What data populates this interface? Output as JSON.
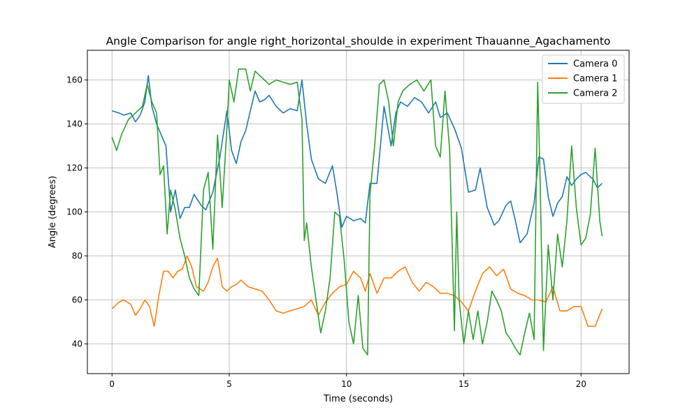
{
  "chart_data": {
    "type": "line",
    "title": "Angle Comparison for angle right_horizontal_shoulde in experiment Thauanne_Agachamento",
    "xlabel": "Time (seconds)",
    "ylabel": "Angle (degrees)",
    "xlim": [
      -1.05,
      22.05
    ],
    "ylim": [
      26.5,
      173.5
    ],
    "xticks": [
      0,
      5,
      10,
      15,
      20
    ],
    "yticks": [
      40,
      60,
      80,
      100,
      120,
      140,
      160
    ],
    "grid": true,
    "legend": "top-right",
    "colors": {
      "Camera 0": "#1f77b4",
      "Camera 1": "#ff7f0e",
      "Camera 2": "#2ca02c"
    },
    "series": [
      {
        "name": "Camera 0",
        "x": [
          0,
          0.3,
          0.5,
          0.8,
          1.0,
          1.2,
          1.4,
          1.55,
          1.7,
          1.9,
          2.1,
          2.3,
          2.5,
          2.7,
          2.9,
          3.1,
          3.3,
          3.5,
          3.8,
          4.0,
          4.3,
          4.6,
          4.9,
          5.1,
          5.3,
          5.5,
          5.7,
          5.9,
          6.1,
          6.3,
          6.5,
          6.7,
          7.0,
          7.3,
          7.6,
          7.9,
          8.1,
          8.3,
          8.5,
          8.8,
          9.1,
          9.4,
          9.6,
          9.8,
          10.0,
          10.3,
          10.6,
          10.8,
          11.0,
          11.3,
          11.6,
          11.9,
          12.1,
          12.3,
          12.6,
          12.9,
          13.2,
          13.5,
          13.8,
          14.0,
          14.3,
          14.6,
          14.9,
          15.2,
          15.5,
          15.7,
          16.0,
          16.3,
          16.5,
          16.8,
          17.0,
          17.2,
          17.4,
          17.7,
          18.0,
          18.2,
          18.4,
          18.6,
          18.8,
          19.0,
          19.2,
          19.4,
          19.6,
          19.8,
          20.0,
          20.2,
          20.5,
          20.7,
          20.9
        ],
        "y": [
          146,
          145,
          144,
          145,
          141,
          144,
          150,
          162,
          148,
          140,
          135,
          130,
          100,
          110,
          97,
          102,
          102,
          108,
          103,
          101,
          109,
          125,
          146,
          128,
          122,
          132,
          137,
          146,
          155,
          150,
          151,
          153,
          148,
          145,
          147,
          146,
          160,
          140,
          124,
          115,
          113,
          121,
          108,
          93,
          98,
          96,
          97,
          95,
          113,
          113,
          148,
          130,
          145,
          150,
          148,
          152,
          150,
          145,
          150,
          143,
          145,
          138,
          129,
          109,
          110,
          120,
          102,
          94,
          96,
          103,
          105,
          96,
          86,
          90,
          104,
          125,
          124,
          107,
          98,
          104,
          107,
          116,
          112,
          115,
          117,
          118,
          115,
          111,
          113
        ]
      },
      {
        "name": "Camera 1",
        "x": [
          0,
          0.3,
          0.5,
          0.8,
          1.0,
          1.2,
          1.4,
          1.6,
          1.8,
          2.0,
          2.2,
          2.4,
          2.6,
          2.8,
          3.0,
          3.2,
          3.4,
          3.6,
          3.9,
          4.1,
          4.3,
          4.5,
          4.7,
          4.9,
          5.1,
          5.3,
          5.5,
          5.8,
          6.1,
          6.4,
          6.7,
          7.0,
          7.3,
          7.6,
          7.9,
          8.2,
          8.5,
          8.8,
          9.1,
          9.4,
          9.7,
          10.0,
          10.3,
          10.6,
          10.8,
          11.0,
          11.3,
          11.6,
          11.9,
          12.2,
          12.5,
          12.8,
          13.1,
          13.4,
          13.7,
          14.0,
          14.3,
          14.6,
          14.9,
          15.2,
          15.5,
          15.8,
          16.1,
          16.4,
          16.7,
          17.0,
          17.3,
          17.6,
          17.9,
          18.2,
          18.5,
          18.8,
          19.1,
          19.4,
          19.7,
          20.0,
          20.3,
          20.6,
          20.9
        ],
        "y": [
          56,
          59,
          60,
          58,
          53,
          56,
          60,
          57,
          48,
          62,
          73,
          73,
          70,
          73,
          74,
          80,
          75,
          66,
          64,
          68,
          75,
          79,
          66,
          64,
          66,
          67,
          69,
          66,
          65,
          64,
          60,
          55,
          54,
          55,
          56,
          57,
          60,
          53,
          59,
          63,
          66,
          67,
          73,
          70,
          64,
          72,
          63,
          70,
          70,
          73,
          75,
          68,
          64,
          68,
          66,
          63,
          63,
          62,
          59,
          55,
          64,
          72,
          75,
          71,
          74,
          65,
          63,
          62,
          60,
          60,
          59,
          66,
          55,
          55,
          57,
          57,
          48,
          48,
          56
        ]
      },
      {
        "name": "Camera 2",
        "x": [
          0,
          0.2,
          0.4,
          0.7,
          1.0,
          1.3,
          1.5,
          1.7,
          1.9,
          2.05,
          2.2,
          2.35,
          2.5,
          2.7,
          2.9,
          3.1,
          3.3,
          3.5,
          3.7,
          3.9,
          4.1,
          4.3,
          4.5,
          4.7,
          4.9,
          5.0,
          5.2,
          5.4,
          5.7,
          5.9,
          6.1,
          6.3,
          6.5,
          6.7,
          7.0,
          7.3,
          7.6,
          7.9,
          8.1,
          8.2,
          8.3,
          8.5,
          8.7,
          8.9,
          9.1,
          9.3,
          9.5,
          9.7,
          9.9,
          10.1,
          10.3,
          10.5,
          10.7,
          10.9,
          11.0,
          11.2,
          11.4,
          11.6,
          11.8,
          12.0,
          12.2,
          12.4,
          12.7,
          13.0,
          13.3,
          13.6,
          13.8,
          14.0,
          14.2,
          14.4,
          14.6,
          14.7,
          14.8,
          15.0,
          15.2,
          15.4,
          15.6,
          15.8,
          16.0,
          16.2,
          16.4,
          16.6,
          16.8,
          17.0,
          17.2,
          17.4,
          17.6,
          17.8,
          18.0,
          18.15,
          18.25,
          18.4,
          18.6,
          18.8,
          19.0,
          19.2,
          19.4,
          19.6,
          19.8,
          20.0,
          20.2,
          20.4,
          20.6,
          20.8,
          20.9
        ],
        "y": [
          134,
          128,
          135,
          142,
          145,
          148,
          158,
          150,
          145,
          117,
          121,
          90,
          110,
          101,
          88,
          80,
          70,
          65,
          62,
          110,
          118,
          83,
          135,
          102,
          138,
          160,
          150,
          165,
          165,
          155,
          164,
          162,
          160,
          158,
          160,
          159,
          158,
          159,
          142,
          87,
          95,
          75,
          60,
          45,
          55,
          70,
          100,
          98,
          78,
          50,
          40,
          62,
          38,
          35,
          108,
          130,
          158,
          160,
          150,
          130,
          150,
          155,
          158,
          160,
          155,
          160,
          130,
          125,
          155,
          128,
          46,
          100,
          60,
          40,
          55,
          42,
          55,
          40,
          50,
          64,
          60,
          55,
          45,
          42,
          38,
          35,
          45,
          54,
          42,
          159,
          118,
          37,
          85,
          60,
          90,
          75,
          96,
          130,
          102,
          85,
          88,
          99,
          129,
          96,
          89
        ]
      }
    ]
  }
}
